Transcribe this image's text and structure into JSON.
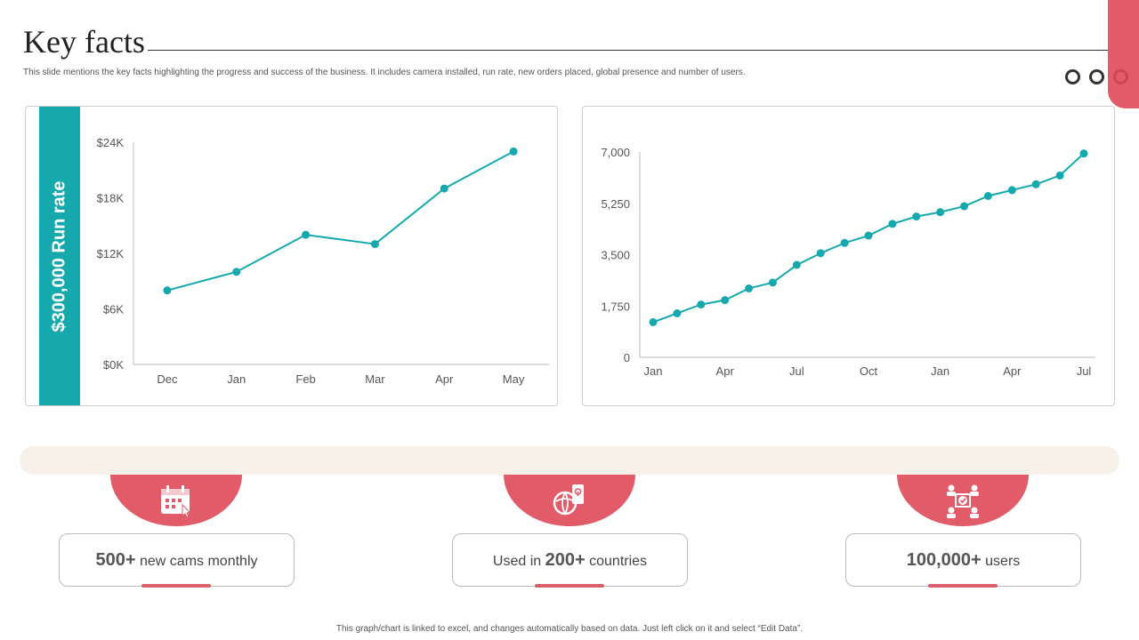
{
  "header": {
    "title": "Key facts",
    "subtitle": "This slide mentions the key facts highlighting the progress and success of the business. It includes camera installed, run rate, new orders placed, global presence and number of users."
  },
  "colors": {
    "accent": "#e25b69",
    "teal": "#15a9ae",
    "cream": "#f8f1e9"
  },
  "run_rate_label": "$300,000 Run rate",
  "chart_data": [
    {
      "type": "line",
      "title": "",
      "categories": [
        "Dec",
        "Jan",
        "Feb",
        "Mar",
        "Apr",
        "May"
      ],
      "values": [
        8000,
        10000,
        14000,
        13000,
        19000,
        23000
      ],
      "y_ticks": [
        "$0K",
        "$6K",
        "$12K",
        "$18K",
        "$24K"
      ],
      "ylim": [
        0,
        24000
      ],
      "grid": false
    },
    {
      "type": "line",
      "title": "",
      "x_tick_labels": [
        "Jan",
        "Apr",
        "Jul",
        "Oct",
        "Jan",
        "Apr",
        "Jul"
      ],
      "values": [
        1200,
        1500,
        1800,
        1950,
        2350,
        2550,
        3150,
        3550,
        3900,
        4150,
        4550,
        4800,
        4950,
        5150,
        5500,
        5700,
        5900,
        6200,
        6950
      ],
      "y_ticks": [
        "0",
        "1,750",
        "3,500",
        "5,250",
        "7,000"
      ],
      "ylim": [
        0,
        7000
      ],
      "grid": false
    }
  ],
  "facts": [
    {
      "icon": "calendar-icon",
      "strong": "500+",
      "rest": " new cams monthly"
    },
    {
      "icon": "globe-phone-icon",
      "pre": "Used in ",
      "strong": "200+",
      "rest": " countries"
    },
    {
      "icon": "network-users-icon",
      "strong": "100,000+",
      "rest": " users"
    }
  ],
  "footer": "This graph/chart is linked to excel, and changes automatically based on data. Just left click on it and select “Edit Data”."
}
